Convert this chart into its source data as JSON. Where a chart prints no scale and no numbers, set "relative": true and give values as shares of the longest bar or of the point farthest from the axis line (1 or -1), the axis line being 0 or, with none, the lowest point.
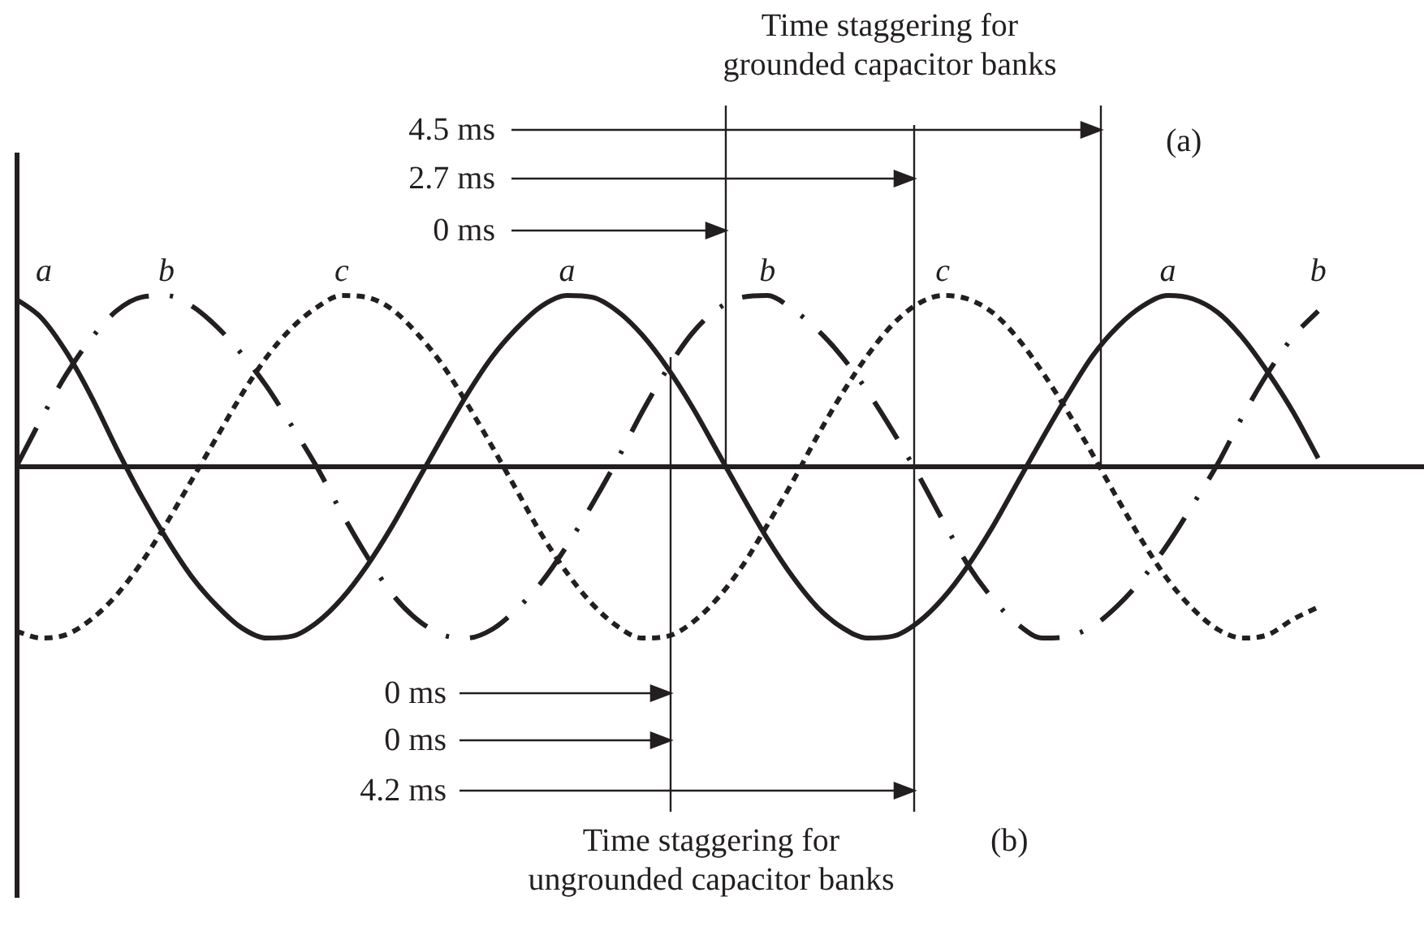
{
  "chart_data": {
    "type": "line",
    "relative": true,
    "categories": [
      null,
      null,
      null,
      null,
      null,
      null,
      null,
      null,
      null,
      null,
      null,
      null,
      null,
      null,
      null,
      null,
      null,
      null,
      null,
      null,
      null,
      null,
      null,
      null,
      null,
      null,
      null,
      null,
      null,
      null,
      null,
      null,
      null,
      null,
      null,
      null,
      null,
      null,
      null,
      null,
      null,
      null,
      null,
      null,
      null,
      null,
      null,
      null,
      null,
      null,
      null,
      null,
      null
    ],
    "series": [
      {
        "name": "a",
        "color": "#231f20",
        "line_style": "solid",
        "values": [
          0.98,
          0.87,
          0.67,
          0.41,
          0.11,
          -0.17,
          -0.42,
          -0.64,
          -0.81,
          -0.94,
          -1.0,
          -0.99,
          -0.91,
          -0.77,
          -0.58,
          -0.35,
          -0.09,
          0.17,
          0.42,
          0.64,
          0.81,
          0.94,
          1.0,
          0.99,
          0.91,
          0.77,
          0.58,
          0.35,
          0.09,
          -0.17,
          -0.42,
          -0.64,
          -0.82,
          -0.94,
          -1.0,
          -0.99,
          -0.91,
          -0.77,
          -0.58,
          -0.35,
          -0.09,
          0.17,
          0.42,
          0.65,
          0.82,
          0.94,
          1.0,
          0.98,
          0.9,
          0.75,
          0.55,
          0.32,
          0.05
        ]
      },
      {
        "name": "b",
        "color": "#231f20",
        "line_style": "dashed",
        "values": [
          0,
          0.28,
          0.54,
          0.75,
          0.91,
          0.99,
          1.0,
          0.94,
          0.82,
          0.66,
          0.47,
          0.24,
          0,
          -0.27,
          -0.52,
          -0.74,
          -0.89,
          -0.98,
          -1.0,
          -0.95,
          -0.83,
          -0.67,
          -0.46,
          -0.22,
          0.04,
          0.32,
          0.57,
          0.78,
          0.92,
          0.99,
          1.0,
          0.92,
          0.8,
          0.64,
          0.44,
          0.21,
          -0.04,
          -0.31,
          -0.57,
          -0.77,
          -0.92,
          -1.0,
          -0.99,
          -0.93,
          -0.81,
          -0.65,
          -0.45,
          -0.22,
          0.02,
          0.3,
          0.55,
          0.76,
          0.91
        ]
      },
      {
        "name": "c",
        "color": "#231f20",
        "line_style": "dotted",
        "values": [
          -0.96,
          -1.0,
          -0.98,
          -0.89,
          -0.75,
          -0.56,
          -0.33,
          -0.08,
          0.17,
          0.42,
          0.64,
          0.81,
          0.93,
          1.0,
          0.99,
          0.92,
          0.78,
          0.6,
          0.37,
          0.12,
          -0.14,
          -0.4,
          -0.62,
          -0.8,
          -0.93,
          -1.0,
          -0.99,
          -0.91,
          -0.77,
          -0.58,
          -0.34,
          -0.09,
          0.18,
          0.43,
          0.65,
          0.83,
          0.95,
          1.0,
          0.98,
          0.9,
          0.75,
          0.55,
          0.32,
          0.07,
          -0.19,
          -0.44,
          -0.66,
          -0.83,
          -0.95,
          -1.0,
          -0.98,
          -0.89,
          -0.82
        ]
      }
    ],
    "annotations": [
      "Time staggering for grounded capacitor banks",
      "4.5 ms",
      "2.7 ms",
      "0 ms",
      "(a)",
      "0 ms",
      "0 ms",
      "4.2 ms",
      "Time staggering for ungrounded capacitor banks",
      "(b)"
    ]
  }
}
